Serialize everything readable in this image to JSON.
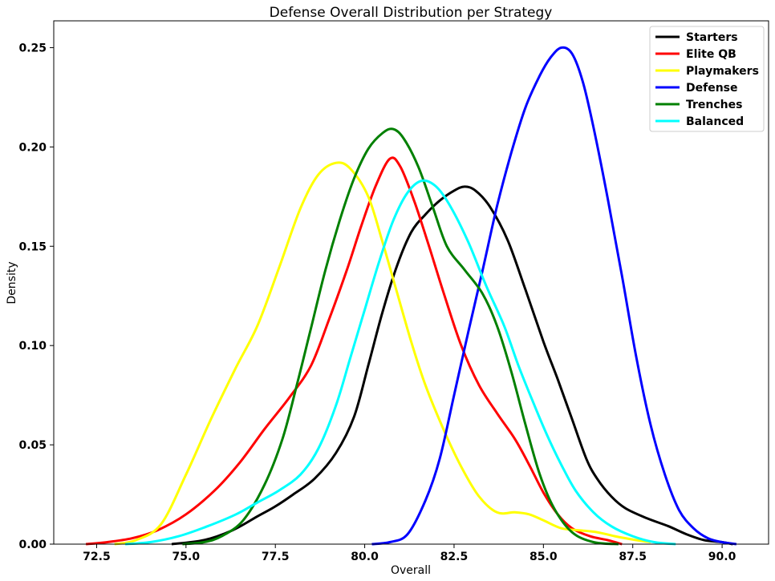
{
  "chart_data": {
    "type": "line",
    "title": "Defense Overall Distribution per Strategy",
    "xlabel": "Overall",
    "ylabel": "Density",
    "xlim": [
      71.3,
      91.3
    ],
    "ylim": [
      0,
      0.2635
    ],
    "xticks": [
      72.5,
      75.0,
      77.5,
      80.0,
      82.5,
      85.0,
      87.5,
      90.0
    ],
    "xtick_labels": [
      "72.5",
      "75.0",
      "77.5",
      "80.0",
      "82.5",
      "85.0",
      "87.5",
      "90.0"
    ],
    "yticks": [
      0,
      0.05,
      0.1,
      0.15,
      0.2,
      0.25
    ],
    "ytick_labels": [
      "0.00",
      "0.05",
      "0.10",
      "0.15",
      "0.20",
      "0.25"
    ],
    "grid": false,
    "legend_position": "top-right",
    "series": [
      {
        "name": "Starters",
        "color": "#000000",
        "points": [
          [
            74.6,
            0.0
          ],
          [
            75.5,
            0.002
          ],
          [
            76.3,
            0.007
          ],
          [
            77.0,
            0.014
          ],
          [
            77.5,
            0.019
          ],
          [
            78.0,
            0.025
          ],
          [
            78.6,
            0.033
          ],
          [
            79.2,
            0.046
          ],
          [
            79.7,
            0.064
          ],
          [
            80.1,
            0.09
          ],
          [
            80.5,
            0.117
          ],
          [
            80.9,
            0.14
          ],
          [
            81.3,
            0.157
          ],
          [
            81.7,
            0.166
          ],
          [
            82.1,
            0.173
          ],
          [
            82.5,
            0.178
          ],
          [
            82.8,
            0.18
          ],
          [
            83.1,
            0.178
          ],
          [
            83.5,
            0.17
          ],
          [
            84.0,
            0.153
          ],
          [
            84.5,
            0.128
          ],
          [
            85.0,
            0.102
          ],
          [
            85.4,
            0.083
          ],
          [
            85.8,
            0.063
          ],
          [
            86.2,
            0.043
          ],
          [
            86.5,
            0.033
          ],
          [
            86.9,
            0.024
          ],
          [
            87.3,
            0.018
          ],
          [
            87.9,
            0.013
          ],
          [
            88.5,
            0.009
          ],
          [
            89.0,
            0.005
          ],
          [
            89.5,
            0.002
          ],
          [
            90.0,
            0.001
          ],
          [
            90.3,
            0.0
          ]
        ]
      },
      {
        "name": "Elite QB",
        "color": "#ff0000",
        "points": [
          [
            72.2,
            0.0
          ],
          [
            72.8,
            0.001
          ],
          [
            73.5,
            0.003
          ],
          [
            74.2,
            0.007
          ],
          [
            75.0,
            0.015
          ],
          [
            75.8,
            0.027
          ],
          [
            76.5,
            0.041
          ],
          [
            77.2,
            0.058
          ],
          [
            77.9,
            0.074
          ],
          [
            78.5,
            0.09
          ],
          [
            79.0,
            0.113
          ],
          [
            79.5,
            0.138
          ],
          [
            79.9,
            0.16
          ],
          [
            80.3,
            0.18
          ],
          [
            80.7,
            0.194
          ],
          [
            81.0,
            0.19
          ],
          [
            81.4,
            0.172
          ],
          [
            81.8,
            0.15
          ],
          [
            82.2,
            0.127
          ],
          [
            82.7,
            0.1
          ],
          [
            83.2,
            0.08
          ],
          [
            83.7,
            0.066
          ],
          [
            84.2,
            0.053
          ],
          [
            84.6,
            0.04
          ],
          [
            85.0,
            0.026
          ],
          [
            85.4,
            0.015
          ],
          [
            85.8,
            0.008
          ],
          [
            86.3,
            0.004
          ],
          [
            86.8,
            0.002
          ],
          [
            87.2,
            0.0
          ]
        ]
      },
      {
        "name": "Playmakers",
        "color": "#ffff00",
        "points": [
          [
            73.0,
            0.0
          ],
          [
            73.6,
            0.002
          ],
          [
            74.3,
            0.01
          ],
          [
            75.0,
            0.035
          ],
          [
            75.7,
            0.063
          ],
          [
            76.4,
            0.089
          ],
          [
            77.0,
            0.11
          ],
          [
            77.6,
            0.139
          ],
          [
            78.2,
            0.169
          ],
          [
            78.7,
            0.186
          ],
          [
            79.2,
            0.192
          ],
          [
            79.6,
            0.189
          ],
          [
            80.1,
            0.175
          ],
          [
            80.5,
            0.152
          ],
          [
            80.9,
            0.127
          ],
          [
            81.3,
            0.102
          ],
          [
            81.7,
            0.08
          ],
          [
            82.2,
            0.058
          ],
          [
            82.7,
            0.039
          ],
          [
            83.2,
            0.024
          ],
          [
            83.7,
            0.016
          ],
          [
            84.2,
            0.016
          ],
          [
            84.6,
            0.015
          ],
          [
            85.0,
            0.012
          ],
          [
            85.5,
            0.008
          ],
          [
            86.0,
            0.007
          ],
          [
            86.5,
            0.006
          ],
          [
            87.0,
            0.004
          ],
          [
            87.6,
            0.002
          ],
          [
            88.0,
            0.001
          ]
        ]
      },
      {
        "name": "Defense",
        "color": "#0000ff",
        "points": [
          [
            80.2,
            0.0
          ],
          [
            80.7,
            0.001
          ],
          [
            81.2,
            0.005
          ],
          [
            81.7,
            0.022
          ],
          [
            82.1,
            0.043
          ],
          [
            82.5,
            0.075
          ],
          [
            82.9,
            0.107
          ],
          [
            83.3,
            0.138
          ],
          [
            83.7,
            0.17
          ],
          [
            84.1,
            0.197
          ],
          [
            84.5,
            0.22
          ],
          [
            84.9,
            0.236
          ],
          [
            85.2,
            0.245
          ],
          [
            85.5,
            0.25
          ],
          [
            85.8,
            0.247
          ],
          [
            86.1,
            0.233
          ],
          [
            86.4,
            0.21
          ],
          [
            86.8,
            0.174
          ],
          [
            87.2,
            0.135
          ],
          [
            87.6,
            0.094
          ],
          [
            88.0,
            0.06
          ],
          [
            88.4,
            0.035
          ],
          [
            88.8,
            0.017
          ],
          [
            89.2,
            0.008
          ],
          [
            89.6,
            0.003
          ],
          [
            90.0,
            0.001
          ],
          [
            90.4,
            0.0
          ]
        ]
      },
      {
        "name": "Trenches",
        "color": "#008000",
        "points": [
          [
            74.9,
            0.0
          ],
          [
            75.5,
            0.001
          ],
          [
            76.0,
            0.004
          ],
          [
            76.6,
            0.012
          ],
          [
            77.2,
            0.03
          ],
          [
            77.7,
            0.053
          ],
          [
            78.1,
            0.08
          ],
          [
            78.5,
            0.109
          ],
          [
            78.9,
            0.138
          ],
          [
            79.3,
            0.163
          ],
          [
            79.7,
            0.184
          ],
          [
            80.1,
            0.199
          ],
          [
            80.5,
            0.207
          ],
          [
            80.8,
            0.209
          ],
          [
            81.1,
            0.204
          ],
          [
            81.5,
            0.19
          ],
          [
            81.9,
            0.17
          ],
          [
            82.3,
            0.15
          ],
          [
            82.8,
            0.138
          ],
          [
            83.3,
            0.126
          ],
          [
            83.7,
            0.11
          ],
          [
            84.1,
            0.087
          ],
          [
            84.5,
            0.06
          ],
          [
            84.9,
            0.035
          ],
          [
            85.3,
            0.018
          ],
          [
            85.8,
            0.006
          ],
          [
            86.4,
            0.001
          ],
          [
            87.1,
            0.0
          ]
        ]
      },
      {
        "name": "Balanced",
        "color": "#00ffff",
        "points": [
          [
            73.3,
            0.0
          ],
          [
            74.0,
            0.001
          ],
          [
            74.8,
            0.004
          ],
          [
            75.6,
            0.009
          ],
          [
            76.4,
            0.015
          ],
          [
            77.0,
            0.021
          ],
          [
            77.6,
            0.027
          ],
          [
            78.2,
            0.035
          ],
          [
            78.7,
            0.048
          ],
          [
            79.2,
            0.07
          ],
          [
            79.6,
            0.094
          ],
          [
            80.0,
            0.118
          ],
          [
            80.4,
            0.142
          ],
          [
            80.8,
            0.163
          ],
          [
            81.2,
            0.177
          ],
          [
            81.6,
            0.183
          ],
          [
            82.0,
            0.18
          ],
          [
            82.4,
            0.17
          ],
          [
            82.9,
            0.152
          ],
          [
            83.4,
            0.13
          ],
          [
            83.9,
            0.11
          ],
          [
            84.3,
            0.09
          ],
          [
            84.7,
            0.072
          ],
          [
            85.1,
            0.055
          ],
          [
            85.5,
            0.04
          ],
          [
            85.9,
            0.027
          ],
          [
            86.4,
            0.016
          ],
          [
            86.9,
            0.009
          ],
          [
            87.5,
            0.004
          ],
          [
            88.1,
            0.001
          ],
          [
            88.7,
            0.0
          ]
        ]
      }
    ]
  }
}
